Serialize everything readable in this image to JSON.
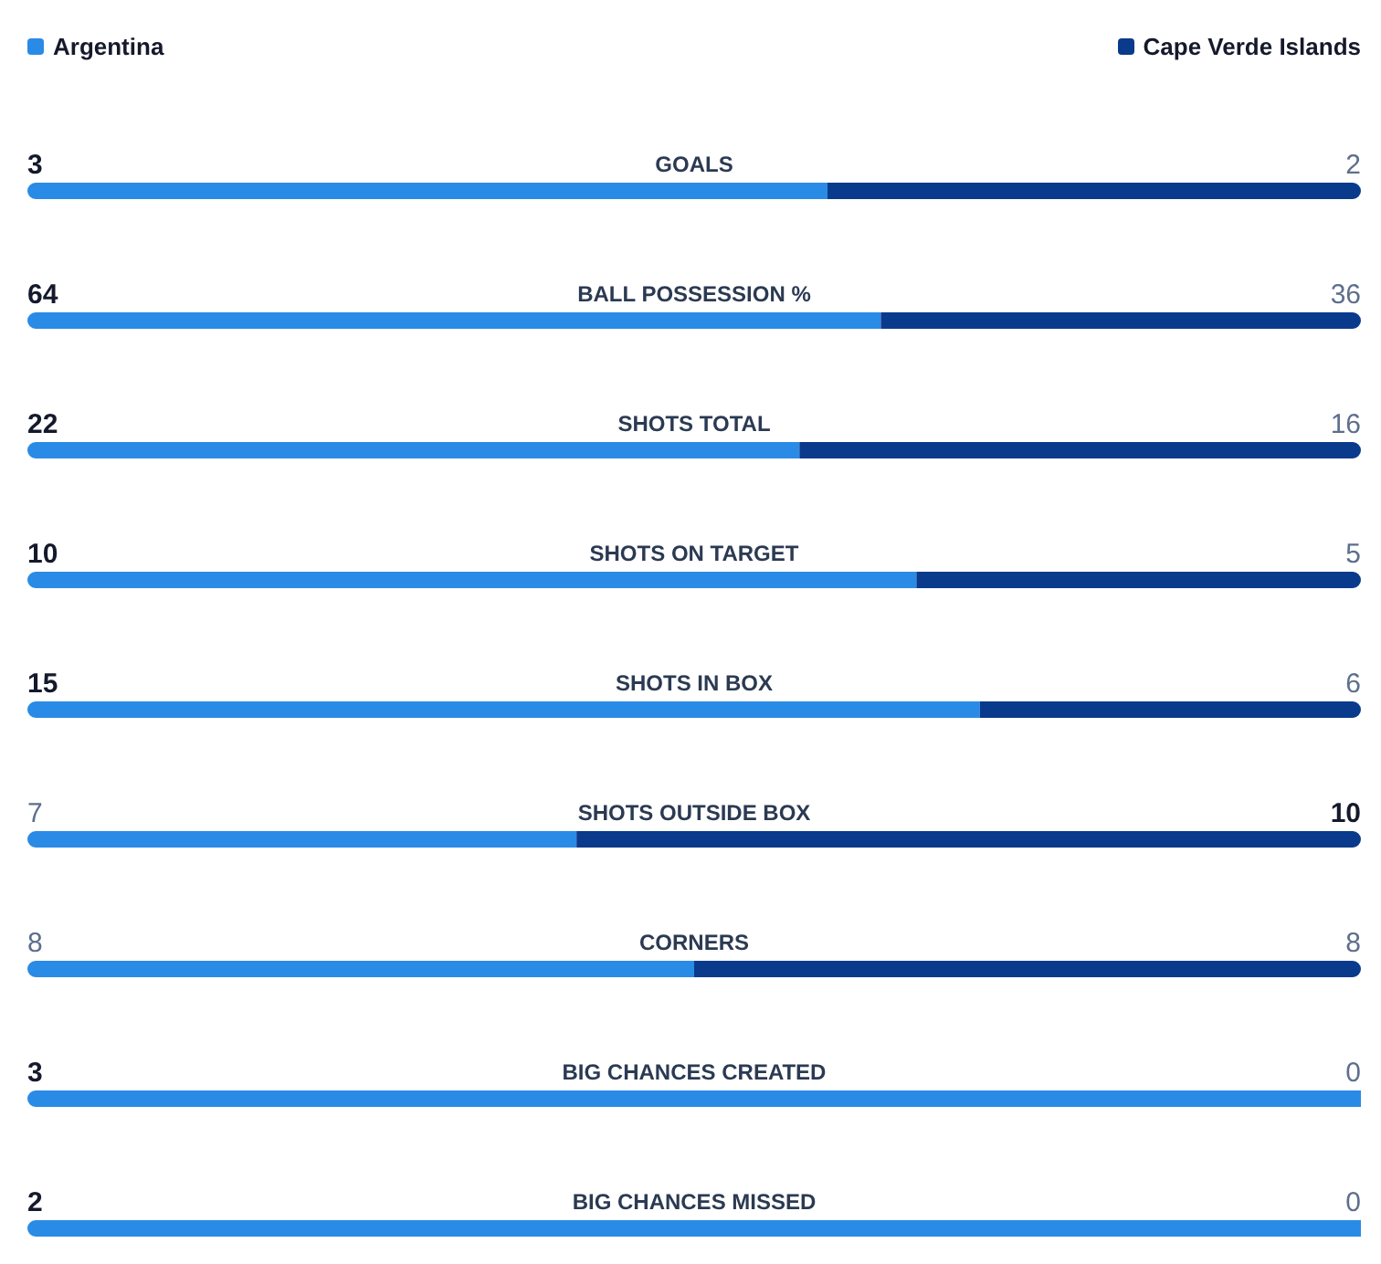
{
  "chart_data": [
    {
      "type": "bar",
      "orientation": "horizontal",
      "stacked": true,
      "data_labels": true,
      "legend": "top",
      "categories": [
        "GOALS"
      ],
      "series": [
        {
          "name": "Argentina",
          "color": "#2a8be6",
          "values": [
            3
          ]
        },
        {
          "name": "Cape Verde Islands",
          "color": "#0a3a8c",
          "values": [
            2
          ]
        }
      ]
    },
    {
      "type": "bar",
      "orientation": "horizontal",
      "stacked": true,
      "data_labels": true,
      "categories": [
        "BALL POSSESSION %"
      ],
      "series": [
        {
          "color": "#2a8be6",
          "values": [
            64
          ]
        },
        {
          "color": "#0a3a8c",
          "values": [
            36
          ]
        }
      ]
    },
    {
      "type": "bar",
      "orientation": "horizontal",
      "stacked": true,
      "data_labels": true,
      "categories": [
        "SHOTS TOTAL"
      ],
      "series": [
        {
          "color": "#2a8be6",
          "values": [
            22
          ]
        },
        {
          "color": "#0a3a8c",
          "values": [
            16
          ]
        }
      ]
    },
    {
      "type": "bar",
      "orientation": "horizontal",
      "stacked": true,
      "data_labels": true,
      "categories": [
        "SHOTS ON TARGET"
      ],
      "series": [
        {
          "color": "#2a8be6",
          "values": [
            10
          ]
        },
        {
          "color": "#0a3a8c",
          "values": [
            5
          ]
        }
      ]
    },
    {
      "type": "bar",
      "orientation": "horizontal",
      "stacked": true,
      "data_labels": true,
      "categories": [
        "SHOTS IN BOX"
      ],
      "series": [
        {
          "color": "#2a8be6",
          "values": [
            15
          ]
        },
        {
          "color": "#0a3a8c",
          "values": [
            6
          ]
        }
      ]
    },
    {
      "type": "bar",
      "orientation": "horizontal",
      "stacked": true,
      "data_labels": true,
      "categories": [
        "SHOTS OUTSIDE BOX"
      ],
      "series": [
        {
          "color": "#2a8be6",
          "values": [
            7
          ]
        },
        {
          "color": "#0a3a8c",
          "values": [
            10
          ]
        }
      ]
    },
    {
      "type": "bar",
      "orientation": "horizontal",
      "stacked": true,
      "data_labels": true,
      "categories": [
        "CORNERS"
      ],
      "series": [
        {
          "color": "#2a8be6",
          "values": [
            8
          ]
        },
        {
          "color": "#0a3a8c",
          "values": [
            8
          ]
        }
      ]
    },
    {
      "type": "bar",
      "orientation": "horizontal",
      "stacked": true,
      "data_labels": true,
      "categories": [
        "BIG CHANCES CREATED"
      ],
      "annotations": [
        "0"
      ],
      "series": [
        {
          "color": "#2a8be6",
          "values": [
            3
          ]
        },
        {
          "color": "#0a3a8c",
          "values": [
            0
          ],
          "value_labels": [
            null
          ]
        }
      ]
    },
    {
      "type": "bar",
      "orientation": "horizontal",
      "stacked": true,
      "data_labels": true,
      "categories": [
        "BIG CHANCES MISSED"
      ],
      "annotations": [
        "0"
      ],
      "series": [
        {
          "color": "#2a8be6",
          "values": [
            2
          ]
        },
        {
          "color": "#0a3a8c",
          "values": [
            0
          ],
          "value_labels": [
            null
          ]
        }
      ]
    }
  ]
}
